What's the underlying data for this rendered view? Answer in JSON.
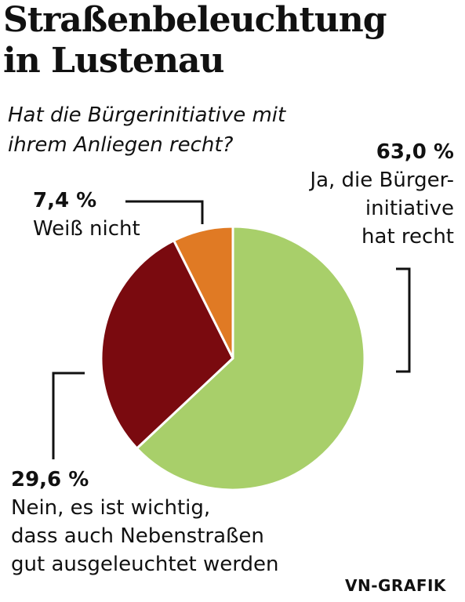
{
  "title": {
    "line1": "Straßenbeleuchtung",
    "line2": "in Lustenau"
  },
  "question": {
    "line1": "Hat die Bürgerinitiative mit",
    "line2": "ihrem Anliegen recht?"
  },
  "credit": "VN-GRAFIK",
  "chart_data": {
    "type": "pie",
    "title": "Straßenbeleuchtung in Lustenau",
    "subtitle": "Hat die Bürgerinitiative mit ihrem Anliegen recht?",
    "slices": [
      {
        "pct_label": "63,0 %",
        "value": 63.0,
        "color": "#a8cf6a",
        "label_lines": [
          "Ja, die Bürger-",
          "initiative",
          "hat recht"
        ]
      },
      {
        "pct_label": "29,6 %",
        "value": 29.6,
        "color": "#7a0a0f",
        "label_lines": [
          "Nein, es ist wichtig,",
          "dass auch Nebenstraßen",
          "gut ausgeleuchtet werden"
        ]
      },
      {
        "pct_label": "7,4 %",
        "value": 7.4,
        "color": "#e07a24",
        "label_lines": [
          "Weiß nicht"
        ]
      }
    ]
  }
}
